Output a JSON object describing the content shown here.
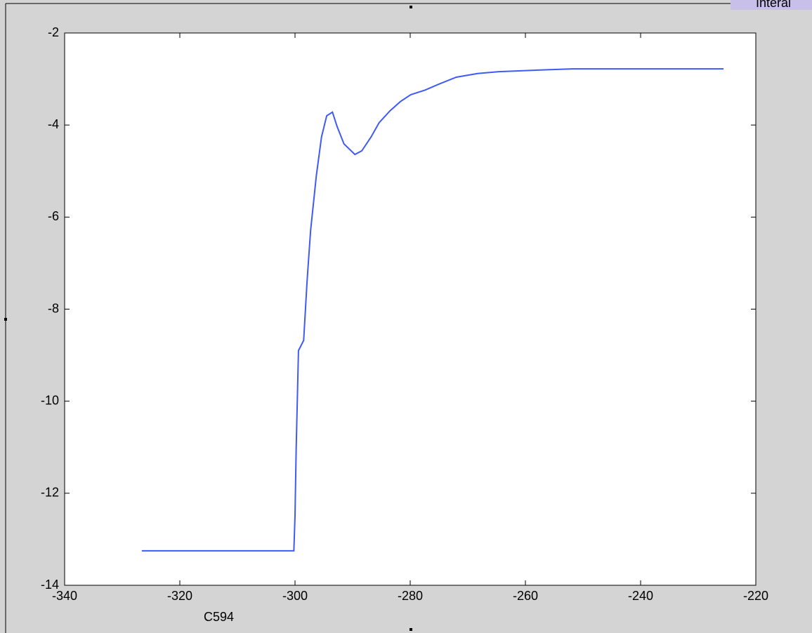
{
  "chart_data": {
    "type": "line",
    "x": [
      -326.6,
      -300.2,
      -300.0,
      -299.8,
      -299.4,
      -298.5,
      -297.9,
      -297.3,
      -296.3,
      -295.4,
      -294.5,
      -293.5,
      -292.7,
      -291.5,
      -289.6,
      -288.4,
      -286.8,
      -285.4,
      -283.5,
      -281.7,
      -279.9,
      -277.4,
      -275.0,
      -272.0,
      -268.3,
      -264.6,
      -258.5,
      -251.8,
      -241.5,
      -225.6
    ],
    "series": [
      {
        "color": "#3f5af5",
        "values": [
          -13.25,
          -13.25,
          -12.49,
          -11.04,
          -8.9,
          -8.68,
          -7.38,
          -6.3,
          -5.1,
          -4.26,
          -3.8,
          -3.72,
          -4.03,
          -4.41,
          -4.64,
          -4.56,
          -4.26,
          -3.95,
          -3.69,
          -3.49,
          -3.34,
          -3.24,
          -3.11,
          -2.96,
          -2.88,
          -2.84,
          -2.81,
          -2.78,
          -2.78,
          -2.78
        ]
      }
    ],
    "xlim": [
      -340,
      -220
    ],
    "xticks": [
      -340,
      -320,
      -300,
      -280,
      -260,
      -240,
      -220
    ],
    "ylim": [
      -14,
      -2
    ],
    "yticks": [
      -14,
      -12,
      -10,
      -8,
      -6,
      -4,
      -2
    ],
    "grid": false,
    "annotations": [
      "C594",
      "Interal"
    ]
  }
}
